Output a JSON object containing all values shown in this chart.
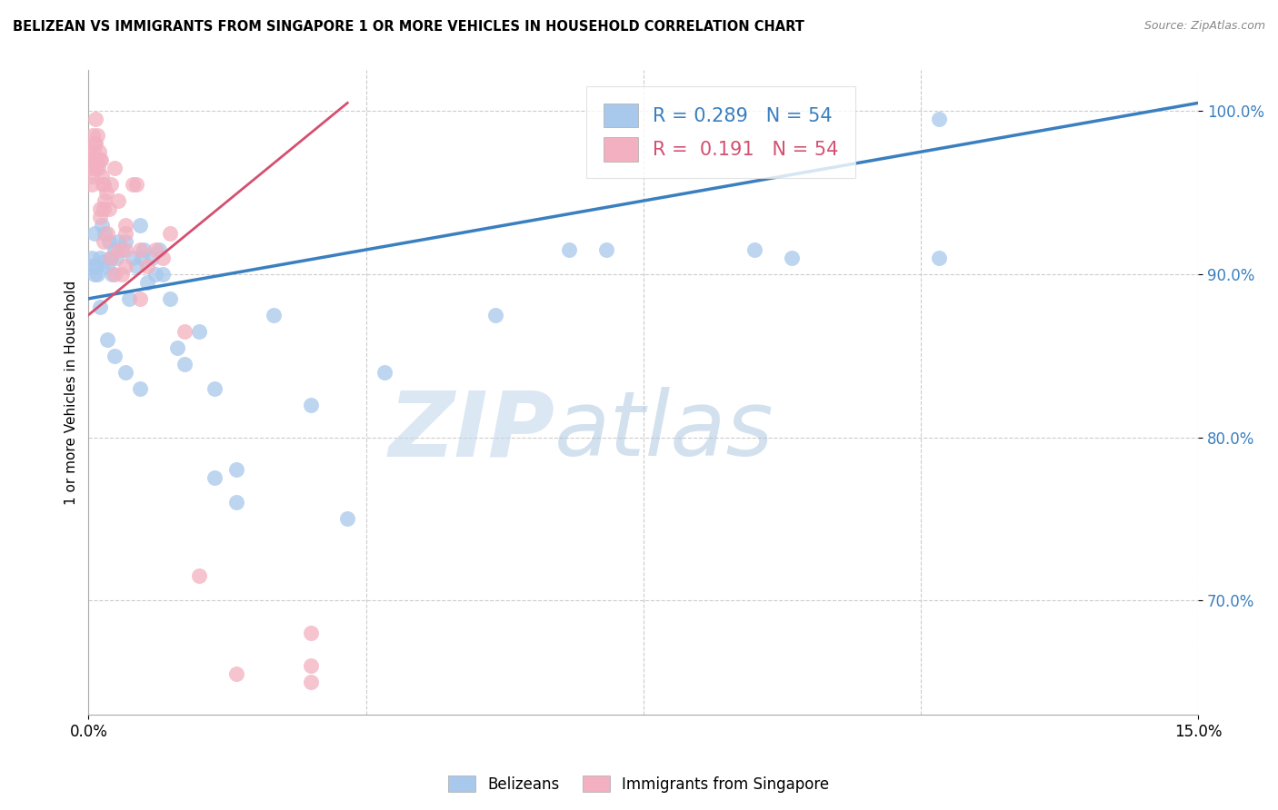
{
  "title": "BELIZEAN VS IMMIGRANTS FROM SINGAPORE 1 OR MORE VEHICLES IN HOUSEHOLD CORRELATION CHART",
  "source": "Source: ZipAtlas.com",
  "ylabel": "1 or more Vehicles in Household",
  "x_min": 0.0,
  "x_max": 15.0,
  "y_min": 63.0,
  "y_max": 102.5,
  "ytick_values": [
    70.0,
    80.0,
    90.0,
    100.0
  ],
  "legend_blue_label": "Belizeans",
  "legend_pink_label": "Immigrants from Singapore",
  "blue_R": 0.289,
  "blue_N": 54,
  "pink_R": 0.191,
  "pink_N": 54,
  "blue_color": "#A8C8EC",
  "pink_color": "#F2B0C0",
  "blue_line_color": "#3A7FBF",
  "pink_line_color": "#D45070",
  "watermark_zip": "ZIP",
  "watermark_atlas": "atlas",
  "blue_line_x0": 0.0,
  "blue_line_y0": 88.5,
  "blue_line_x1": 15.0,
  "blue_line_y1": 100.5,
  "pink_line_x0": 0.0,
  "pink_line_y0": 87.5,
  "pink_line_x1": 3.5,
  "pink_line_y1": 100.5,
  "blue_x": [
    0.05,
    0.08,
    0.12,
    0.18,
    0.22,
    0.28,
    0.32,
    0.38,
    0.45,
    0.55,
    0.65,
    0.72,
    0.8,
    0.9,
    1.0,
    1.1,
    1.3,
    1.5,
    1.7,
    2.0,
    2.5,
    3.5,
    4.0,
    5.5,
    9.0,
    11.5,
    0.05,
    0.1,
    0.15,
    0.2,
    0.25,
    0.3,
    0.35,
    0.4,
    0.5,
    0.6,
    0.7,
    0.75,
    0.85,
    0.95,
    1.2,
    1.7,
    2.0,
    3.0,
    6.5,
    7.0,
    9.5,
    11.5,
    0.08,
    0.15,
    0.25,
    0.35,
    0.5,
    0.7
  ],
  "blue_y": [
    91.0,
    92.5,
    90.0,
    93.0,
    92.5,
    92.0,
    90.0,
    91.0,
    91.5,
    88.5,
    90.5,
    91.0,
    89.5,
    90.0,
    90.0,
    88.5,
    84.5,
    86.5,
    77.5,
    76.0,
    87.5,
    75.0,
    84.0,
    87.5,
    91.5,
    99.5,
    90.5,
    90.5,
    91.0,
    90.8,
    90.5,
    91.0,
    91.5,
    92.0,
    92.0,
    91.0,
    93.0,
    91.5,
    91.0,
    91.5,
    85.5,
    83.0,
    78.0,
    82.0,
    91.5,
    91.5,
    91.0,
    91.0,
    90.0,
    88.0,
    86.0,
    85.0,
    84.0,
    83.0
  ],
  "pink_x": [
    0.02,
    0.04,
    0.06,
    0.06,
    0.08,
    0.1,
    0.1,
    0.12,
    0.14,
    0.16,
    0.18,
    0.2,
    0.22,
    0.24,
    0.28,
    0.3,
    0.35,
    0.4,
    0.5,
    0.6,
    0.65,
    0.7,
    0.8,
    0.9,
    1.0,
    0.05,
    0.07,
    0.09,
    0.11,
    0.13,
    0.15,
    0.17,
    0.19,
    0.21,
    0.25,
    0.3,
    0.35,
    0.4,
    0.45,
    0.5,
    0.7,
    1.1,
    1.3,
    1.5,
    2.0,
    3.0,
    0.5,
    0.5,
    3.0,
    3.0,
    0.04,
    0.1,
    0.15,
    0.2
  ],
  "pink_y": [
    97.5,
    96.5,
    97.0,
    98.5,
    98.0,
    99.5,
    97.0,
    98.5,
    97.5,
    97.0,
    96.0,
    95.5,
    94.5,
    95.0,
    94.0,
    95.5,
    96.5,
    94.5,
    92.5,
    95.5,
    95.5,
    91.5,
    90.5,
    91.5,
    91.0,
    96.0,
    97.5,
    98.0,
    97.0,
    96.5,
    94.0,
    97.0,
    95.5,
    94.0,
    92.5,
    91.0,
    90.0,
    91.5,
    90.0,
    93.0,
    88.5,
    92.5,
    86.5,
    71.5,
    65.5,
    66.0,
    90.5,
    91.5,
    68.0,
    65.0,
    95.5,
    96.5,
    93.5,
    92.0
  ]
}
